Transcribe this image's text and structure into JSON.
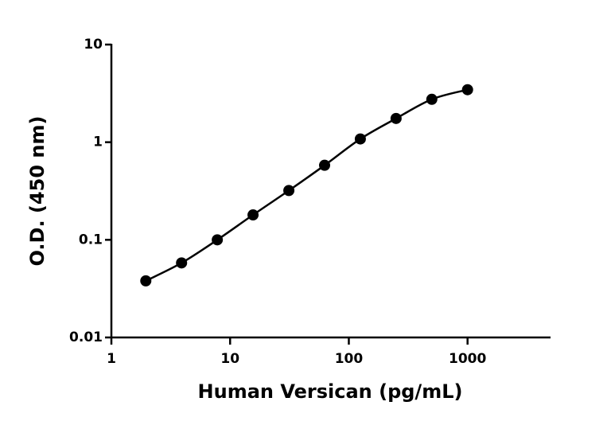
{
  "chart_data": {
    "type": "scatter",
    "xlabel": "Human Versican (pg/mL)",
    "ylabel": "O.D. (450 nm)",
    "x": [
      1.95,
      3.9,
      7.8,
      15.6,
      31.25,
      62.5,
      125,
      250,
      500,
      1000
    ],
    "values": [
      0.038,
      0.058,
      0.1,
      0.18,
      0.32,
      0.58,
      1.08,
      1.75,
      2.75,
      3.45
    ],
    "color": "#000000",
    "xlog": true,
    "ylog": true,
    "fit_curve": true,
    "xlim": [
      1,
      5000
    ],
    "ylim": [
      0.01,
      10
    ],
    "xticks": [
      1,
      10,
      100,
      1000
    ],
    "yticks": [
      0.01,
      0.1,
      1,
      10
    ]
  }
}
